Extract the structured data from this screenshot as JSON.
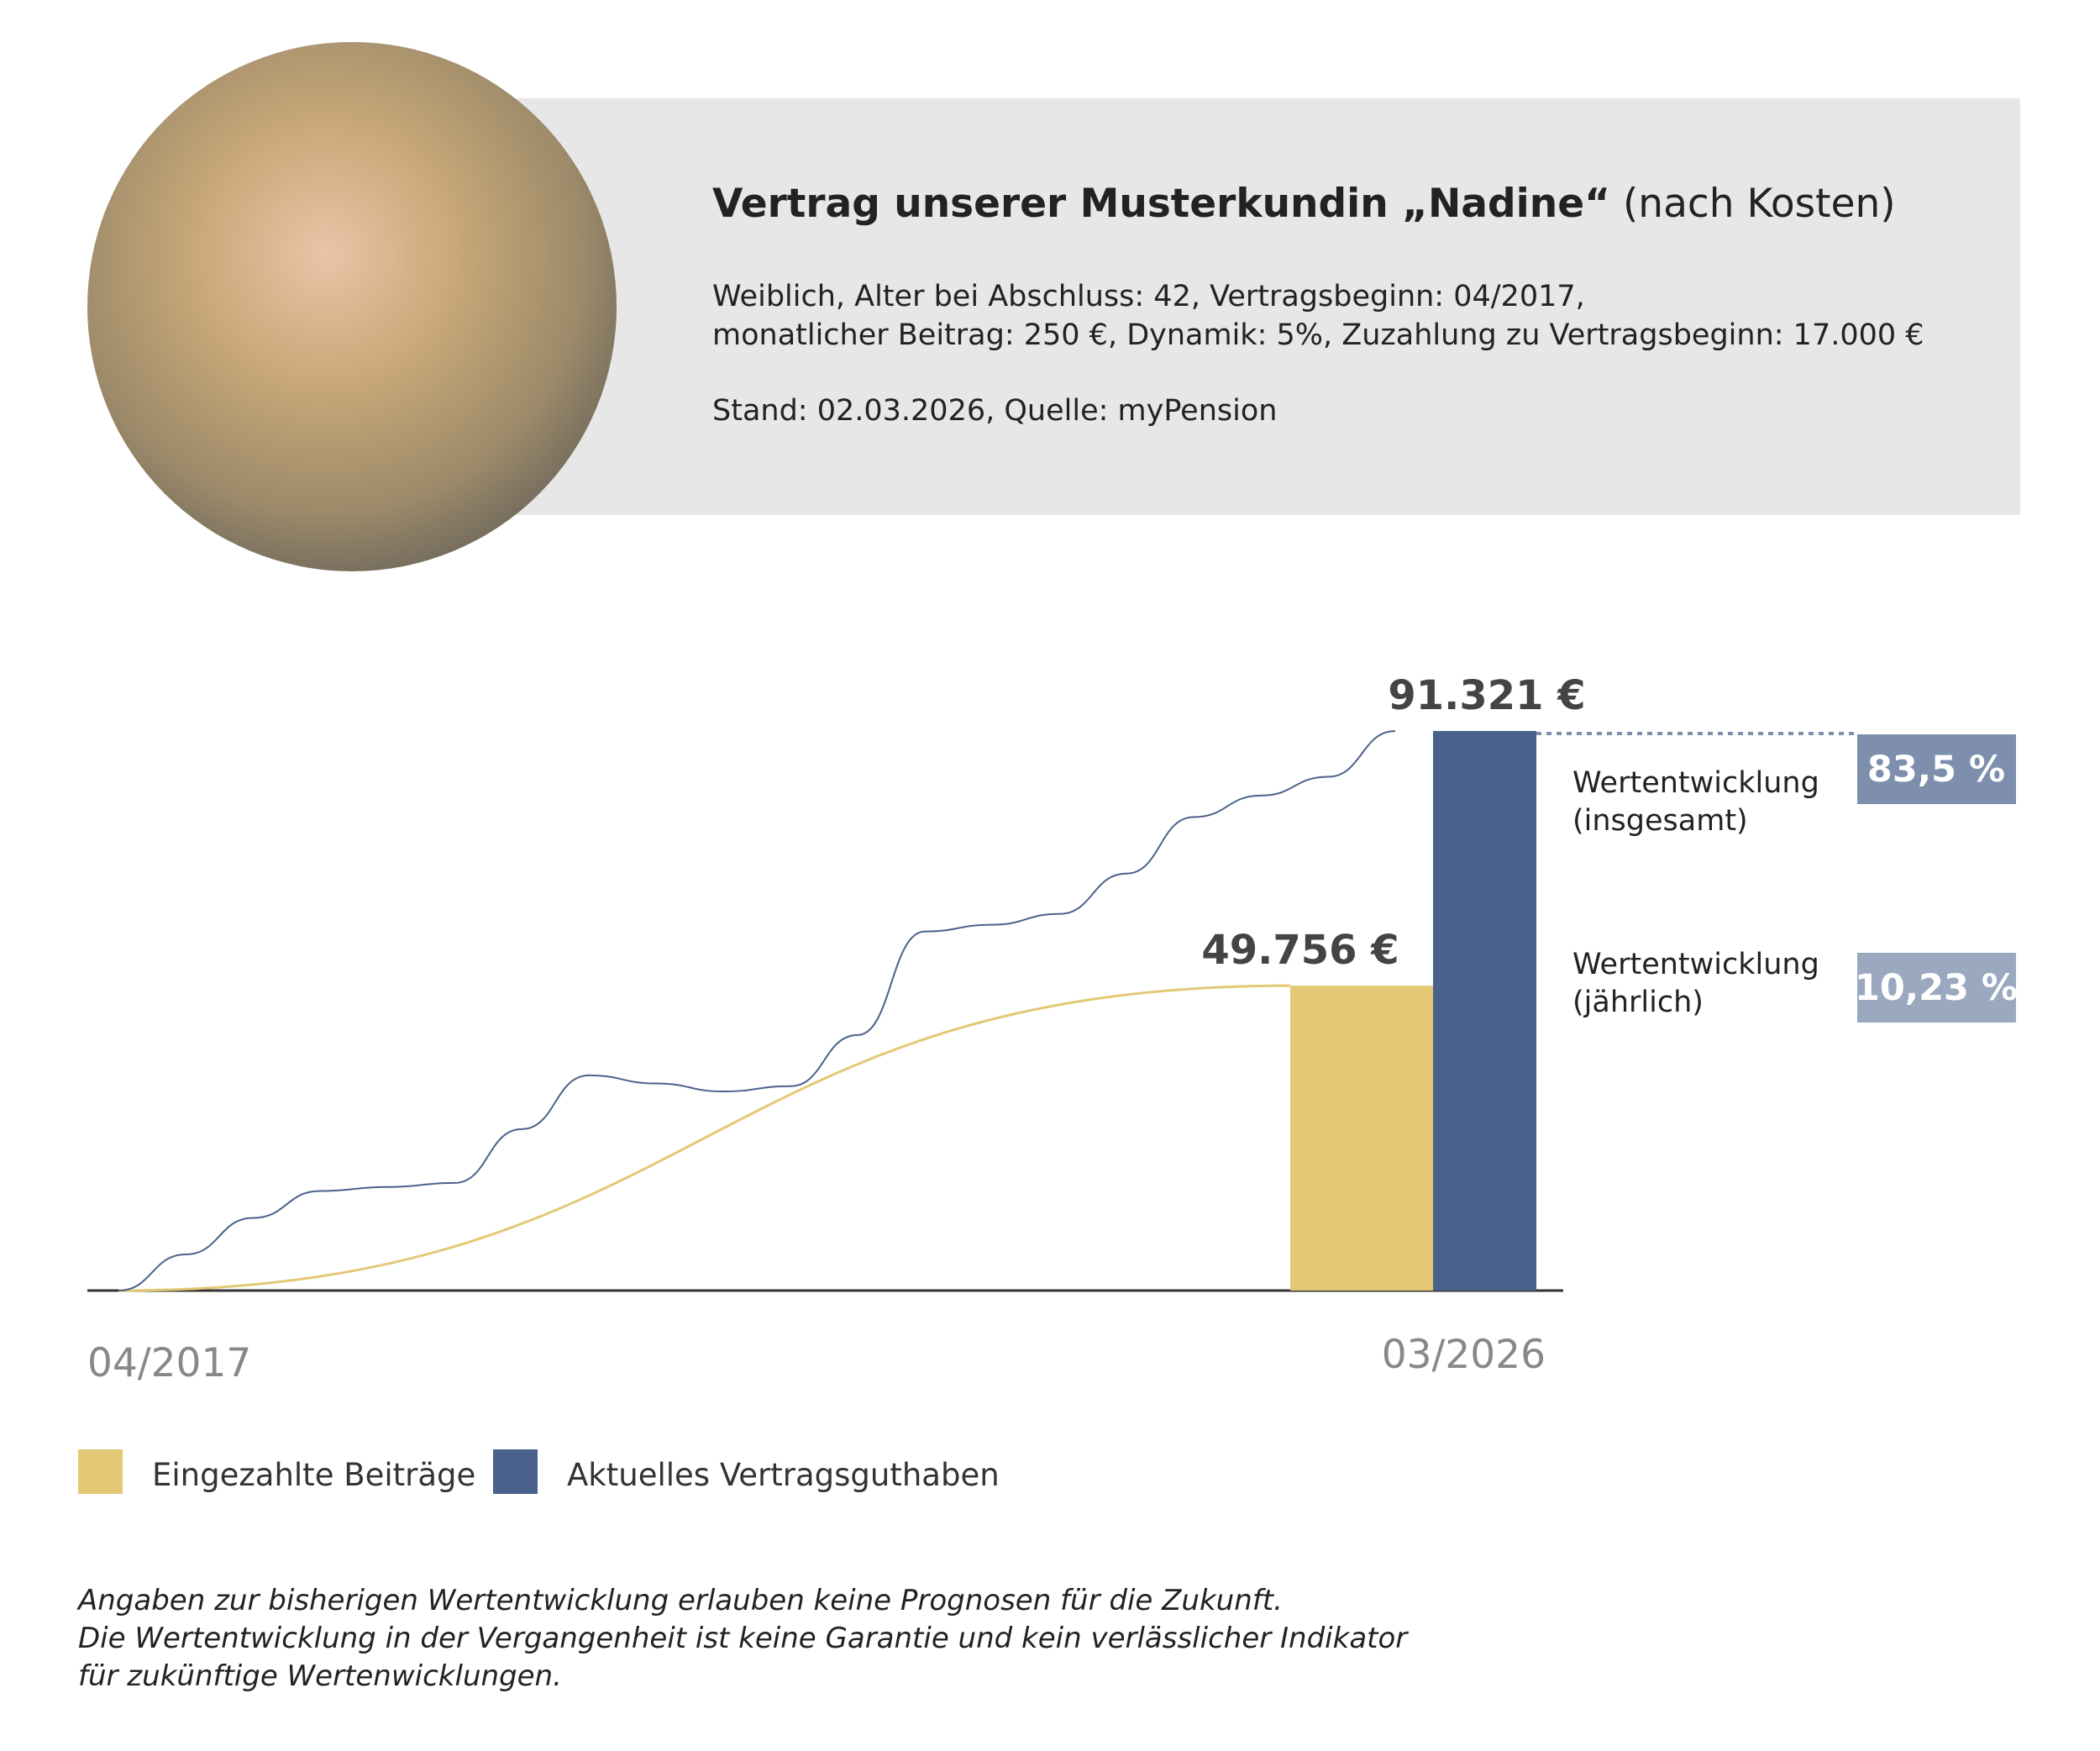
{
  "header": {
    "title_bold": "Vertrag unserer Musterkundin „Nadine“",
    "title_suffix": "(nach Kosten)",
    "details": [
      "Weiblich, Alter bei Abschluss: 42, Vertragsbeginn: 04/2017,",
      "monatlicher Beitrag: 250 €, Dynamik: 5%, Zuzahlung zu Vertragsbeginn: 17.000 €",
      "Stand: 02.03.2026, Quelle: myPension"
    ]
  },
  "chart_data": {
    "type": "bar",
    "x_labels": [
      "04/2017",
      "03/2026"
    ],
    "ylim": [
      0,
      91321
    ],
    "series": [
      {
        "name": "Eingezahlte Beiträge",
        "color": "#e3c875",
        "values": [
          0,
          49756
        ],
        "total_label": "49.756 €"
      },
      {
        "name": "Aktuelles Vertragsguthaben",
        "color": "#4a628b",
        "values": [
          0,
          5900,
          11850,
          16240,
          16900,
          17560,
          26340,
          35120,
          33800,
          32490,
          33360,
          41700,
          58600,
          59700,
          61460,
          68050,
          77270,
          80780,
          83850,
          91321
        ],
        "total_label": "91.321 €"
      }
    ],
    "performance": [
      {
        "label": [
          "Wertentwicklung",
          "(insgesamt)"
        ],
        "value_label": "83,5 %",
        "color": "#7d8fad"
      },
      {
        "label": [
          "Wertentwicklung",
          "(jährlich)"
        ],
        "value_label": "10,23 %",
        "color": "#9aa8c0"
      }
    ]
  },
  "footnote": [
    "Angaben zur bisherigen Wertentwicklung erlauben keine Prognosen für die Zukunft.",
    "Die Wertentwicklung in der Vergangenheit ist keine Garantie und kein verlässlicher Indikator",
    "für zukünftige Wertenwicklungen."
  ]
}
